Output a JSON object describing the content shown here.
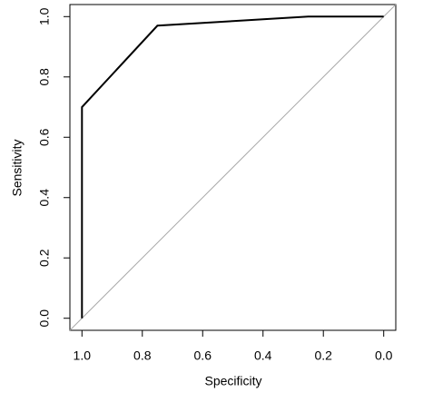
{
  "chart_data": {
    "type": "line",
    "xlabel": "Specificity",
    "ylabel": "Sensitivity",
    "x": [
      1.0,
      1.0,
      0.75,
      0.5,
      0.25,
      0.0
    ],
    "values": [
      0.0,
      0.7,
      0.97,
      0.985,
      1.0,
      1.0
    ],
    "color": "#000000",
    "reference_color": "#aaaaaa",
    "xlim": [
      1.04,
      -0.04
    ],
    "ylim": [
      -0.04,
      1.04
    ],
    "xticks": [
      {
        "value": 1.0,
        "label": "1.0"
      },
      0.8,
      0.6,
      0.4,
      0.2,
      {
        "value": 0.0,
        "label": "0.0"
      }
    ],
    "yticks": [
      {
        "value": 0.0,
        "label": "0.0"
      },
      0.2,
      0.4,
      0.6,
      0.8,
      {
        "value": 1.0,
        "label": "1.0"
      }
    ]
  }
}
